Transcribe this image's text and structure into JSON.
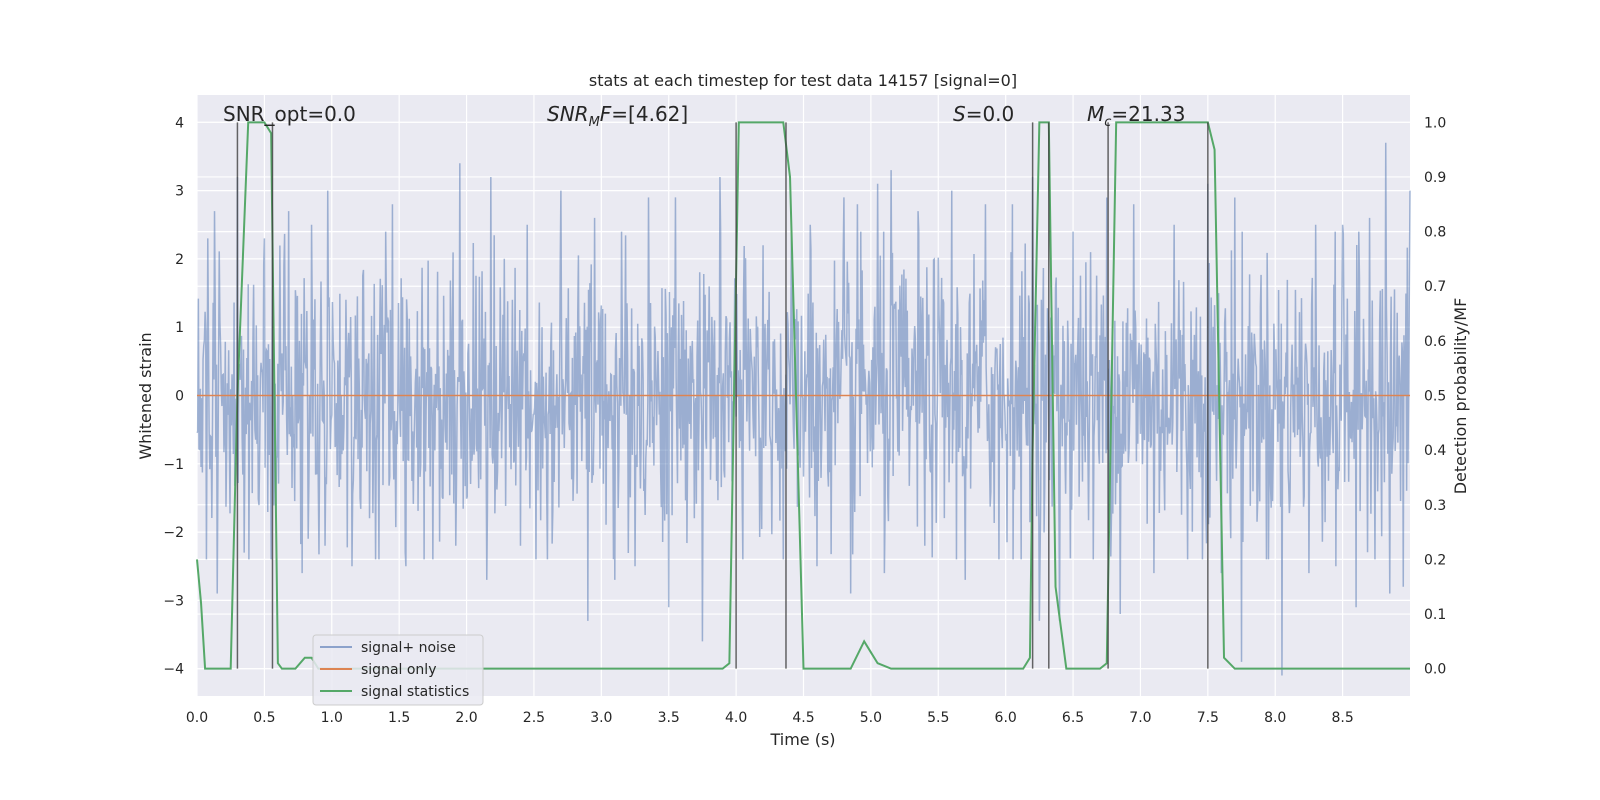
{
  "chart_data": {
    "type": "line",
    "title": "stats at each timestep for test data 14157 [signal=0]",
    "xlabel": "Time (s)",
    "ylabel": "Whitened strain",
    "y2label": "Detection probability/MF",
    "xlim": [
      0,
      9
    ],
    "ylim": [
      -4.4,
      4.4
    ],
    "y2lim": [
      -0.05,
      1.05
    ],
    "grid": true,
    "legend_position": "lower-left",
    "x_ticks": [
      0,
      0.5,
      1,
      1.5,
      2,
      2.5,
      3,
      3.5,
      4,
      4.5,
      5,
      5.5,
      6,
      6.5,
      7,
      7.5,
      8,
      8.5
    ],
    "x_tick_labels": [
      "0.0",
      "0.5",
      "1.0",
      "1.5",
      "2.0",
      "2.5",
      "3.0",
      "3.5",
      "4.0",
      "4.5",
      "5.0",
      "5.5",
      "6.0",
      "6.5",
      "7.0",
      "7.5",
      "8.0",
      "8.5"
    ],
    "y_ticks": [
      -4,
      -3,
      -2,
      -1,
      0,
      1,
      2,
      3,
      4
    ],
    "y_tick_labels": [
      "−4",
      "−3",
      "−2",
      "−1",
      "0",
      "1",
      "2",
      "3",
      "4"
    ],
    "y2_ticks": [
      0,
      0.1,
      0.2,
      0.3,
      0.4,
      0.5,
      0.6,
      0.7,
      0.8,
      0.9,
      1.0
    ],
    "y2_tick_labels": [
      "0.0",
      "0.1",
      "0.2",
      "0.3",
      "0.4",
      "0.5",
      "0.6",
      "0.7",
      "0.8",
      "0.9",
      "1.0"
    ],
    "annotations": [
      {
        "id": "snr-opt",
        "parts": [
          {
            "t": "SNR_opt=0.0",
            "i": false
          }
        ]
      },
      {
        "id": "snr-mf",
        "parts": [
          {
            "t": "SNR",
            "i": true
          },
          {
            "t": "M",
            "i": true,
            "sub": true
          },
          {
            "t": "F",
            "i": true
          },
          {
            "t": "=[4.62]",
            "i": false
          }
        ]
      },
      {
        "id": "s-stat",
        "parts": [
          {
            "t": "S",
            "i": true
          },
          {
            "t": "=0.0",
            "i": false
          }
        ]
      },
      {
        "id": "chirp-mass",
        "parts": [
          {
            "t": "M",
            "i": true
          },
          {
            "t": "c",
            "i": true,
            "sub": true
          },
          {
            "t": "=21.33",
            "i": false
          }
        ]
      }
    ],
    "series": [
      {
        "name": "signal+ noise",
        "color": "#4c72b0",
        "axis": "left",
        "style": "noise",
        "samples_per_second": 200,
        "typical_amplitude": 1.6,
        "peaks": [
          [
            0.08,
            2.3
          ],
          [
            0.13,
            2.7
          ],
          [
            0.3,
            3.2
          ],
          [
            0.35,
            2.8
          ],
          [
            0.5,
            2.3
          ],
          [
            0.68,
            2.7
          ],
          [
            0.85,
            2.5
          ],
          [
            0.97,
            3.0
          ],
          [
            1.15,
            2.3
          ],
          [
            1.45,
            2.8
          ],
          [
            1.75,
            2.5
          ],
          [
            1.95,
            3.4
          ],
          [
            2.18,
            3.2
          ],
          [
            2.45,
            2.5
          ],
          [
            2.7,
            3.0
          ],
          [
            2.95,
            2.6
          ],
          [
            3.15,
            2.4
          ],
          [
            3.35,
            2.9
          ],
          [
            3.55,
            2.9
          ],
          [
            3.75,
            3.4
          ],
          [
            3.88,
            3.2
          ],
          [
            4.2,
            2.2
          ],
          [
            4.55,
            2.5
          ],
          [
            4.8,
            2.9
          ],
          [
            4.9,
            2.8
          ],
          [
            5.05,
            3.1
          ],
          [
            5.15,
            3.3
          ],
          [
            5.35,
            2.7
          ],
          [
            5.6,
            3.0
          ],
          [
            5.85,
            2.8
          ],
          [
            6.05,
            2.8
          ],
          [
            6.2,
            3.2
          ],
          [
            6.5,
            2.4
          ],
          [
            6.75,
            2.9
          ],
          [
            6.95,
            2.8
          ],
          [
            7.25,
            2.5
          ],
          [
            7.5,
            3.1
          ],
          [
            7.7,
            2.9
          ],
          [
            7.95,
            2.6
          ],
          [
            8.05,
            2.6
          ],
          [
            8.3,
            2.5
          ],
          [
            8.5,
            2.5
          ],
          [
            8.7,
            2.6
          ],
          [
            8.82,
            3.7
          ],
          [
            9.0,
            3.0
          ]
        ],
        "troughs": [
          [
            0.07,
            -2.4
          ],
          [
            0.15,
            -2.9
          ],
          [
            0.35,
            -2.3
          ],
          [
            0.55,
            -2.4
          ],
          [
            0.78,
            -2.6
          ],
          [
            0.95,
            -2.2
          ],
          [
            1.15,
            -2.5
          ],
          [
            1.35,
            -2.4
          ],
          [
            1.55,
            -2.5
          ],
          [
            1.75,
            -2.4
          ],
          [
            1.92,
            -2.2
          ],
          [
            2.15,
            -2.7
          ],
          [
            2.4,
            -2.2
          ],
          [
            2.6,
            -2.4
          ],
          [
            2.9,
            -3.3
          ],
          [
            3.1,
            -2.7
          ],
          [
            3.25,
            -2.5
          ],
          [
            3.5,
            -3.1
          ],
          [
            3.75,
            -3.6
          ],
          [
            4.05,
            -2.4
          ],
          [
            4.35,
            -2.4
          ],
          [
            4.6,
            -2.5
          ],
          [
            4.85,
            -2.9
          ],
          [
            5.1,
            -2.6
          ],
          [
            5.4,
            -2.2
          ],
          [
            5.7,
            -2.7
          ],
          [
            5.95,
            -2.4
          ],
          [
            6.25,
            -3.3
          ],
          [
            6.4,
            -3.3
          ],
          [
            6.65,
            -2.4
          ],
          [
            6.85,
            -3.2
          ],
          [
            7.1,
            -2.6
          ],
          [
            7.35,
            -2.4
          ],
          [
            7.6,
            -2.6
          ],
          [
            7.75,
            -3.9
          ],
          [
            7.95,
            -2.4
          ],
          [
            8.05,
            -4.1
          ],
          [
            8.25,
            -2.6
          ],
          [
            8.45,
            -2.5
          ],
          [
            8.6,
            -3.1
          ],
          [
            8.85,
            -2.9
          ],
          [
            8.95,
            -2.8
          ]
        ]
      },
      {
        "name": "signal only",
        "color": "#dd8452",
        "axis": "left",
        "x": [
          0,
          9
        ],
        "y": [
          0,
          0
        ]
      },
      {
        "name": "signal statistics",
        "color": "#55a868",
        "axis": "right",
        "x": [
          0,
          0.03,
          0.06,
          0.2,
          0.25,
          0.3,
          0.38,
          0.43,
          0.5,
          0.55,
          0.6,
          0.63,
          0.68,
          0.73,
          0.8,
          0.85,
          0.9,
          1.0,
          2.5,
          3.9,
          3.95,
          4.02,
          4.08,
          4.35,
          4.4,
          4.45,
          4.5,
          4.55,
          4.6,
          4.7,
          4.8,
          4.85,
          4.95,
          5.0,
          5.05,
          5.15,
          5.3,
          6.0,
          6.13,
          6.18,
          6.2,
          6.25,
          6.32,
          6.37,
          6.45,
          6.5,
          6.6,
          6.7,
          6.75,
          6.82,
          6.9,
          7.0,
          7.5,
          7.55,
          7.62,
          7.7,
          7.8,
          8.0,
          9.0
        ],
        "y": [
          0.2,
          0.12,
          0.0,
          0.0,
          0.0,
          0.5,
          1.0,
          1.0,
          1.0,
          0.98,
          0.01,
          0.0,
          0.0,
          0.0,
          0.02,
          0.02,
          0.0,
          0.0,
          0.0,
          0.0,
          0.01,
          1.0,
          1.0,
          1.0,
          0.9,
          0.45,
          0.0,
          0.0,
          0.0,
          0.0,
          0.0,
          0.0,
          0.05,
          0.03,
          0.01,
          0.0,
          0.0,
          0.0,
          0.0,
          0.02,
          0.4,
          1.0,
          1.0,
          0.15,
          0.0,
          0.0,
          0.0,
          0.0,
          0.01,
          1.0,
          1.0,
          1.0,
          1.0,
          0.95,
          0.02,
          0.0,
          0.0,
          0.0,
          0.0
        ]
      }
    ],
    "vertical_markers": {
      "color": "#404040",
      "axis": "right",
      "bottom": 0.0,
      "top": 1.0,
      "x": [
        0.3,
        0.56,
        4.0,
        4.37,
        6.2,
        6.32,
        6.76,
        7.5
      ]
    }
  }
}
